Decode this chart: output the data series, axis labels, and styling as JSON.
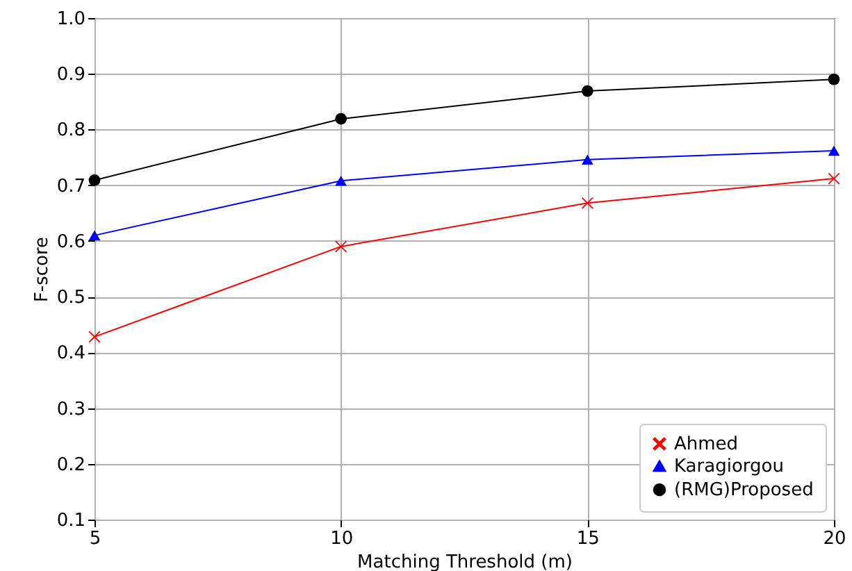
{
  "chart_data": {
    "type": "line",
    "xlabel": "Matching Threshold (m)",
    "ylabel": "F-score",
    "x": [
      5,
      10,
      15,
      20
    ],
    "series": [
      {
        "name": "Ahmed",
        "color": "#ff0000",
        "marker": "cross",
        "values": [
          0.428,
          0.59,
          0.668,
          0.712
        ]
      },
      {
        "name": "Karagiorgou",
        "color": "#0000ff",
        "marker": "triangle",
        "values": [
          0.61,
          0.708,
          0.746,
          0.762
        ]
      },
      {
        "name": "(RMG)Proposed",
        "color": "#000000",
        "marker": "circle",
        "values": [
          0.709,
          0.819,
          0.869,
          0.89
        ]
      }
    ],
    "xlim": [
      5,
      20
    ],
    "xticks": [
      5,
      10,
      15,
      20
    ],
    "ylim": [
      0.1,
      1.0
    ],
    "yticks": [
      0.1,
      0.2,
      0.3,
      0.4,
      0.5,
      0.6,
      0.7,
      0.8,
      0.9,
      {
        "value": 1,
        "label": "1.0"
      }
    ],
    "grid": true,
    "legend": "bottom right",
    "line_style": "solid"
  }
}
